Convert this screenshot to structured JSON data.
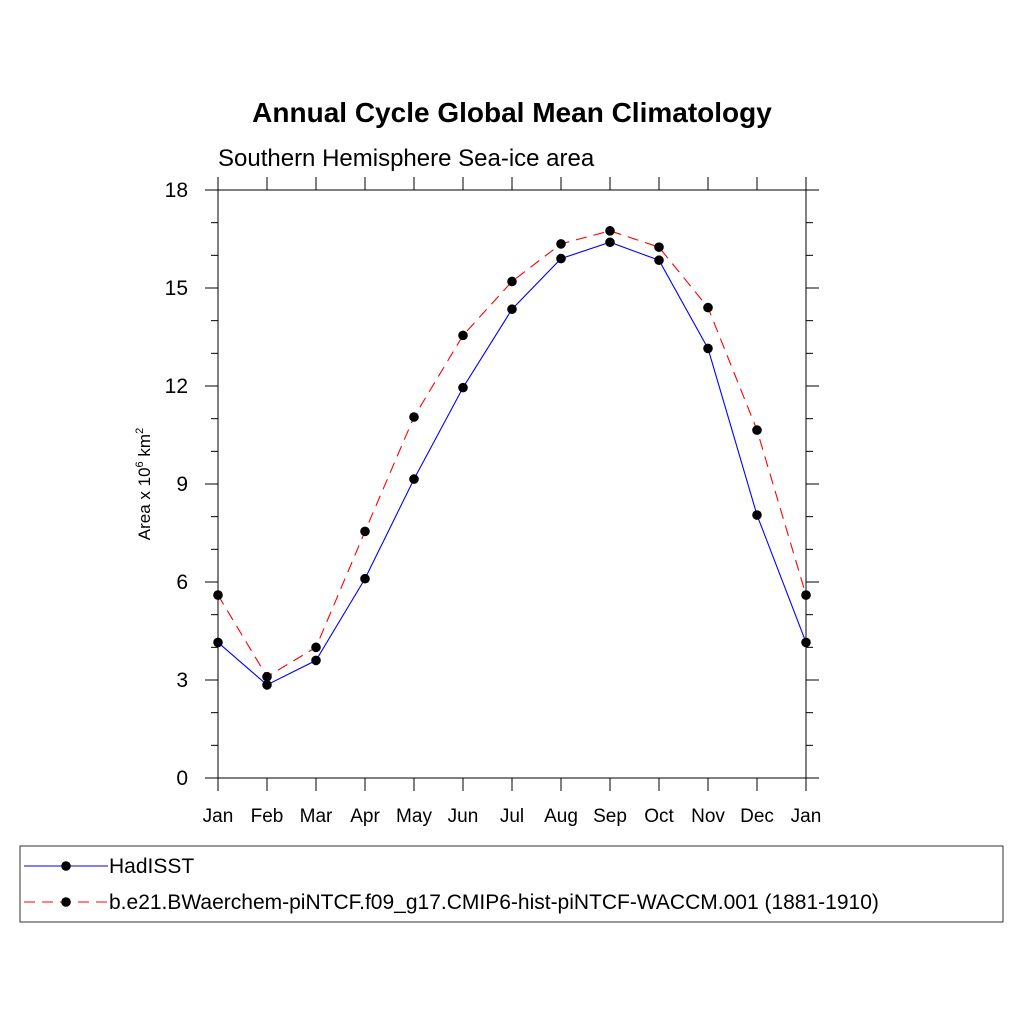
{
  "chart_data": {
    "type": "line",
    "title": "Annual Cycle Global Mean Climatology",
    "subtitle": "Southern Hemisphere Sea-ice area",
    "ylabel_prefix": "Area x 10",
    "ylabel_exp1": "6",
    "ylabel_unit": " km",
    "ylabel_exp2": "2",
    "xlabel": "",
    "categories": [
      "Jan",
      "Feb",
      "Mar",
      "Apr",
      "May",
      "Jun",
      "Jul",
      "Aug",
      "Sep",
      "Oct",
      "Nov",
      "Dec",
      "Jan"
    ],
    "ylim": [
      0,
      18
    ],
    "yticks": [
      0,
      3,
      6,
      9,
      12,
      15,
      18
    ],
    "series": [
      {
        "name": "HadISST",
        "color": "#0000ff",
        "dash": "solid",
        "values": [
          4.15,
          2.85,
          3.6,
          6.1,
          9.15,
          11.95,
          14.35,
          15.9,
          16.4,
          15.85,
          13.15,
          8.05,
          4.15
        ]
      },
      {
        "name": "b.e21.BWaerchem-piNTCF.f09_g17.CMIP6-hist-piNTCF-WACCM.001 (1881-1910)",
        "color": "#ff0000",
        "dash": "dashed",
        "values": [
          5.6,
          3.1,
          4.0,
          7.55,
          11.05,
          13.55,
          15.2,
          16.35,
          16.75,
          16.25,
          14.4,
          10.65,
          5.6
        ]
      }
    ],
    "legend_position": "bottom"
  }
}
